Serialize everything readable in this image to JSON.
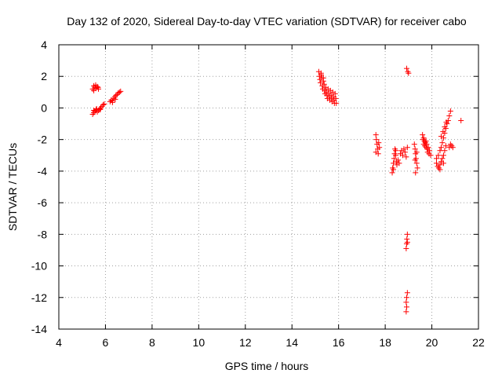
{
  "chart_data": {
    "type": "scatter",
    "title": "Day 132 of 2020, Sidereal Day-to-day VTEC variation (SDTVAR) for receiver cabo",
    "xlabel": "GPS time / hours",
    "ylabel": "SDTVAR / TECUs",
    "xlim": [
      4,
      22
    ],
    "ylim": [
      -14,
      4
    ],
    "grid": true,
    "marker": "plus",
    "color": "#ff0000",
    "x_ticks": [
      4,
      6,
      8,
      10,
      12,
      14,
      16,
      18,
      20,
      22
    ],
    "y_ticks": [
      -14,
      -12,
      -10,
      -8,
      -6,
      -4,
      -2,
      0,
      2,
      4
    ],
    "x_tick_labels": [
      "4",
      "6",
      "8",
      "10",
      "12",
      "14",
      "16",
      "18",
      "20",
      "22"
    ],
    "y_tick_labels": [
      "-14",
      "-12",
      "-10",
      "-8",
      "-6",
      "-4",
      "-2",
      "0",
      "2",
      "4"
    ],
    "series": [
      {
        "name": "SDTVAR",
        "points": [
          [
            5.45,
            1.2
          ],
          [
            5.5,
            1.4
          ],
          [
            5.55,
            1.3
          ],
          [
            5.6,
            1.25
          ],
          [
            5.65,
            1.35
          ],
          [
            5.7,
            1.2
          ],
          [
            5.5,
            1.1
          ],
          [
            5.58,
            1.45
          ],
          [
            5.68,
            1.3
          ],
          [
            5.45,
            -0.4
          ],
          [
            5.5,
            -0.3
          ],
          [
            5.55,
            -0.2
          ],
          [
            5.6,
            -0.1
          ],
          [
            5.65,
            -0.25
          ],
          [
            5.7,
            -0.15
          ],
          [
            5.75,
            -0.05
          ],
          [
            5.8,
            0.0
          ],
          [
            5.85,
            0.1
          ],
          [
            5.9,
            0.2
          ],
          [
            5.95,
            0.25
          ],
          [
            5.5,
            -0.15
          ],
          [
            5.62,
            -0.05
          ],
          [
            5.78,
            -0.1
          ],
          [
            6.2,
            0.4
          ],
          [
            6.25,
            0.5
          ],
          [
            6.3,
            0.45
          ],
          [
            6.35,
            0.6
          ],
          [
            6.4,
            0.7
          ],
          [
            6.45,
            0.8
          ],
          [
            6.5,
            0.85
          ],
          [
            6.55,
            0.95
          ],
          [
            6.6,
            1.0
          ],
          [
            6.65,
            1.05
          ],
          [
            6.3,
            0.35
          ],
          [
            6.42,
            0.55
          ],
          [
            15.15,
            2.3
          ],
          [
            15.18,
            2.0
          ],
          [
            15.2,
            1.8
          ],
          [
            15.22,
            1.6
          ],
          [
            15.25,
            2.1
          ],
          [
            15.28,
            1.9
          ],
          [
            15.3,
            1.4
          ],
          [
            15.32,
            1.2
          ],
          [
            15.35,
            1.7
          ],
          [
            15.38,
            1.5
          ],
          [
            15.4,
            1.1
          ],
          [
            15.42,
            0.9
          ],
          [
            15.45,
            1.3
          ],
          [
            15.48,
            1.0
          ],
          [
            15.5,
            0.8
          ],
          [
            15.52,
            0.6
          ],
          [
            15.55,
            1.2
          ],
          [
            15.58,
            0.9
          ],
          [
            15.6,
            0.7
          ],
          [
            15.62,
            0.5
          ],
          [
            15.65,
            1.1
          ],
          [
            15.68,
            0.8
          ],
          [
            15.7,
            0.6
          ],
          [
            15.72,
            0.4
          ],
          [
            15.75,
            1.0
          ],
          [
            15.78,
            0.7
          ],
          [
            15.8,
            0.5
          ],
          [
            15.82,
            0.3
          ],
          [
            15.85,
            0.9
          ],
          [
            15.88,
            0.6
          ],
          [
            15.9,
            0.3
          ],
          [
            15.25,
            2.2
          ],
          [
            15.35,
            1.9
          ],
          [
            17.6,
            -1.7
          ],
          [
            17.62,
            -2.0
          ],
          [
            17.65,
            -2.3
          ],
          [
            17.68,
            -2.6
          ],
          [
            17.7,
            -2.9
          ],
          [
            17.72,
            -2.2
          ],
          [
            17.75,
            -2.5
          ],
          [
            17.6,
            -2.8
          ],
          [
            18.3,
            -4.1
          ],
          [
            18.32,
            -3.8
          ],
          [
            18.35,
            -3.5
          ],
          [
            18.38,
            -3.2
          ],
          [
            18.4,
            -2.9
          ],
          [
            18.42,
            -2.6
          ],
          [
            18.45,
            -3.0
          ],
          [
            18.48,
            -3.4
          ],
          [
            18.5,
            -3.6
          ],
          [
            18.55,
            -3.3
          ],
          [
            18.6,
            -3.5
          ],
          [
            18.65,
            -2.9
          ],
          [
            18.7,
            -2.7
          ],
          [
            18.75,
            -3.0
          ],
          [
            18.8,
            -2.6
          ],
          [
            18.85,
            -2.8
          ],
          [
            18.9,
            -3.1
          ],
          [
            18.95,
            -2.5
          ],
          [
            18.35,
            -3.9
          ],
          [
            18.45,
            -2.7
          ],
          [
            18.92,
            2.5
          ],
          [
            18.97,
            2.3
          ],
          [
            19.0,
            2.2
          ],
          [
            18.95,
            -8.0
          ],
          [
            18.93,
            -8.3
          ],
          [
            18.92,
            -8.6
          ],
          [
            18.9,
            -8.9
          ],
          [
            18.95,
            -8.5
          ],
          [
            18.95,
            -11.7
          ],
          [
            18.92,
            -12.0
          ],
          [
            18.9,
            -12.3
          ],
          [
            18.92,
            -12.6
          ],
          [
            18.9,
            -12.9
          ],
          [
            19.25,
            -2.3
          ],
          [
            19.28,
            -2.6
          ],
          [
            19.3,
            -2.9
          ],
          [
            19.32,
            -3.2
          ],
          [
            19.35,
            -3.5
          ],
          [
            19.38,
            -3.8
          ],
          [
            19.3,
            -4.1
          ],
          [
            19.35,
            -2.8
          ],
          [
            19.28,
            -3.3
          ],
          [
            19.6,
            -1.7
          ],
          [
            19.62,
            -2.0
          ],
          [
            19.65,
            -2.3
          ],
          [
            19.68,
            -2.1
          ],
          [
            19.7,
            -2.4
          ],
          [
            19.72,
            -2.2
          ],
          [
            19.75,
            -2.5
          ],
          [
            19.78,
            -2.3
          ],
          [
            19.8,
            -2.6
          ],
          [
            19.82,
            -2.8
          ],
          [
            19.85,
            -2.5
          ],
          [
            19.88,
            -2.9
          ],
          [
            19.9,
            -2.7
          ],
          [
            19.95,
            -3.0
          ],
          [
            19.65,
            -1.9
          ],
          [
            19.75,
            -2.1
          ],
          [
            20.2,
            -3.5
          ],
          [
            20.25,
            -3.7
          ],
          [
            20.3,
            -3.8
          ],
          [
            20.35,
            -3.6
          ],
          [
            20.4,
            -3.4
          ],
          [
            20.45,
            -3.2
          ],
          [
            20.5,
            -3.0
          ],
          [
            20.55,
            -2.7
          ],
          [
            20.6,
            -2.4
          ],
          [
            20.2,
            -3.2
          ],
          [
            20.28,
            -3.0
          ],
          [
            20.35,
            -2.7
          ],
          [
            20.4,
            -2.5
          ],
          [
            20.45,
            -2.2
          ],
          [
            20.5,
            -1.9
          ],
          [
            20.55,
            -1.6
          ],
          [
            20.6,
            -1.3
          ],
          [
            20.65,
            -1.0
          ],
          [
            20.7,
            -0.8
          ],
          [
            20.75,
            -0.5
          ],
          [
            20.8,
            -0.2
          ],
          [
            20.4,
            -1.8
          ],
          [
            20.48,
            -1.5
          ],
          [
            20.55,
            -1.2
          ],
          [
            20.62,
            -0.9
          ],
          [
            20.35,
            -3.9
          ],
          [
            20.5,
            -3.5
          ],
          [
            20.75,
            -2.5
          ],
          [
            20.8,
            -2.3
          ],
          [
            20.85,
            -2.4
          ],
          [
            20.9,
            -2.5
          ],
          [
            21.25,
            -0.8
          ]
        ]
      }
    ]
  }
}
